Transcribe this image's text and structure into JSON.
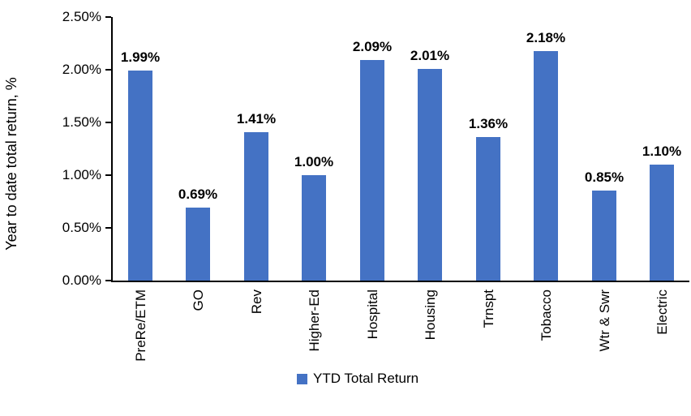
{
  "chart_data": {
    "type": "bar",
    "categories": [
      "PreRe/ETM",
      "GO",
      "Rev",
      "Higher-Ed",
      "Hospital",
      "Housing",
      "Trnspt",
      "Tobacco",
      "Wtr & Swr",
      "Electric"
    ],
    "values": [
      1.99,
      0.69,
      1.41,
      1.0,
      2.09,
      2.01,
      1.36,
      2.18,
      0.85,
      1.1
    ],
    "data_labels": [
      "1.99%",
      "0.69%",
      "1.41%",
      "1.00%",
      "2.09%",
      "2.01%",
      "1.36%",
      "2.18%",
      "0.85%",
      "1.10%"
    ],
    "title": "",
    "xlabel": "",
    "ylabel": "Year to date total return, %",
    "ylim": [
      0,
      2.5
    ],
    "yticks": [
      {
        "value": 0.0,
        "label": "0.00%"
      },
      {
        "value": 0.5,
        "label": "0.50%"
      },
      {
        "value": 1.0,
        "label": "1.00%"
      },
      {
        "value": 1.5,
        "label": "1.50%"
      },
      {
        "value": 2.0,
        "label": "2.00%"
      },
      {
        "value": 2.5,
        "label": "2.50%"
      }
    ],
    "grid": false,
    "legend_position": "bottom",
    "legend": [
      {
        "name": "YTD Total Return",
        "color": "#4472C4"
      }
    ],
    "bar_color": "#4472C4",
    "axis_color": "#000000",
    "text_color": "#000000"
  }
}
